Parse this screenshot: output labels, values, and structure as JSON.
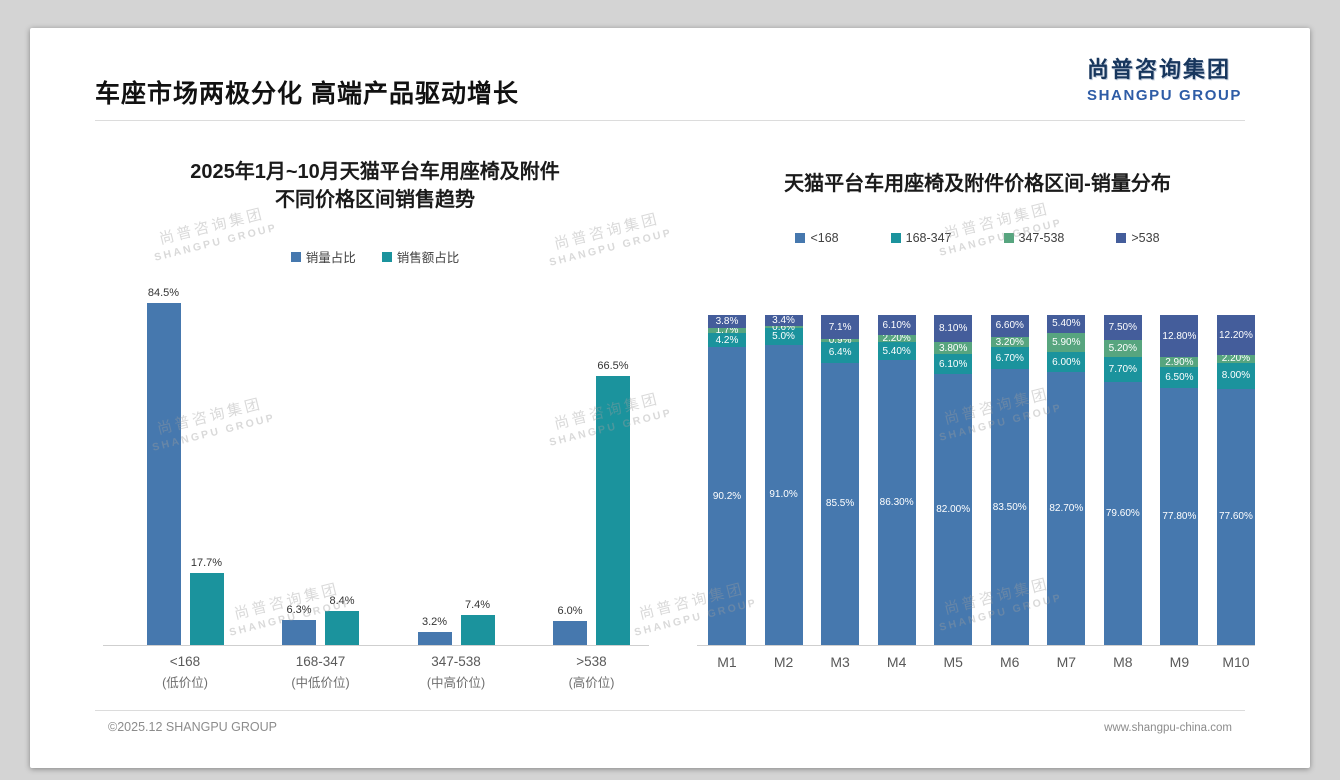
{
  "slide": {
    "title": "车座市场两极分化 高端产品驱动增长",
    "logo": {
      "cn": "尚普咨询集团",
      "en": "SHANGPU GROUP",
      "cn_color": "#17365d",
      "en_color": "#2e5ca6"
    },
    "watermark": {
      "cn": "尚普咨询集团",
      "en": "SHANGPU GROUP"
    },
    "footer": {
      "left": "©2025.12 SHANGPU GROUP",
      "right": "www.shangpu-china.com"
    }
  },
  "chart_data": [
    {
      "type": "bar",
      "variant": "grouped",
      "title_lines": [
        "2025年1月~10月天猫平台车用座椅及附件",
        "不同价格区间销售趋势"
      ],
      "categories": [
        "<168",
        "168-347",
        "347-538",
        ">538"
      ],
      "category_sublabels": [
        "(低价位)",
        "(中低价位)",
        "(中高价位)",
        "(高价位)"
      ],
      "ylim": [
        0,
        100
      ],
      "grid": false,
      "legend_position": "top",
      "series": [
        {
          "name": "销量占比",
          "color": "#4678ae",
          "values": [
            84.5,
            6.3,
            3.2,
            6.0
          ],
          "labels": [
            "84.5%",
            "6.3%",
            "3.2%",
            "6.0%"
          ]
        },
        {
          "name": "销售额占比",
          "color": "#1b939d",
          "values": [
            17.7,
            8.4,
            7.4,
            66.5
          ],
          "labels": [
            "17.7%",
            "8.4%",
            "7.4%",
            "66.5%"
          ]
        }
      ]
    },
    {
      "type": "bar",
      "variant": "stacked-100",
      "title": "天猫平台车用座椅及附件价格区间-销量分布",
      "categories": [
        "M1",
        "M2",
        "M3",
        "M4",
        "M5",
        "M6",
        "M7",
        "M8",
        "M9",
        "M10"
      ],
      "ylim": [
        0,
        100
      ],
      "grid": false,
      "legend_position": "top",
      "series": [
        {
          "name": "<168",
          "color": "#4678ae",
          "values": [
            90.2,
            91.0,
            85.5,
            86.3,
            82.0,
            83.5,
            82.7,
            79.6,
            77.8,
            77.6
          ],
          "labels": [
            "90.2%",
            "91.0%",
            "85.5%",
            "86.30%",
            "82.00%",
            "83.50%",
            "82.70%",
            "79.60%",
            "77.80%",
            "77.60%"
          ]
        },
        {
          "name": "168-347",
          "color": "#1b939d",
          "values": [
            4.2,
            5.0,
            6.4,
            5.4,
            6.1,
            6.7,
            6.0,
            7.7,
            6.5,
            8.0
          ],
          "labels": [
            "4.2%",
            "5.0%",
            "6.4%",
            "5.40%",
            "6.10%",
            "6.70%",
            "6.00%",
            "7.70%",
            "6.50%",
            "8.00%"
          ]
        },
        {
          "name": "347-538",
          "color": "#57a57f",
          "values": [
            1.7,
            0.6,
            0.9,
            2.2,
            3.8,
            3.2,
            5.9,
            5.2,
            2.9,
            2.2
          ],
          "labels": [
            "1.7%",
            "0.6%",
            "0.9%",
            "2.20%",
            "3.80%",
            "3.20%",
            "5.90%",
            "5.20%",
            "2.90%",
            "2.20%"
          ]
        },
        {
          "name": ">538",
          "color": "#445d9b",
          "values": [
            3.8,
            3.4,
            7.1,
            6.1,
            8.1,
            6.6,
            5.4,
            7.5,
            12.8,
            12.2
          ],
          "labels": [
            "3.8%",
            "3.4%",
            "7.1%",
            "6.10%",
            "8.10%",
            "6.60%",
            "5.40%",
            "7.50%",
            "12.80%",
            "12.20%"
          ]
        }
      ]
    }
  ]
}
